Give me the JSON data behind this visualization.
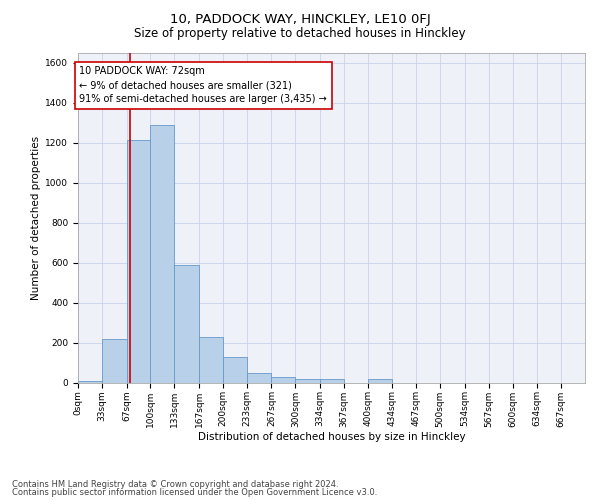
{
  "title": "10, PADDOCK WAY, HINCKLEY, LE10 0FJ",
  "subtitle": "Size of property relative to detached houses in Hinckley",
  "xlabel": "Distribution of detached houses by size in Hinckley",
  "ylabel": "Number of detached properties",
  "bin_labels": [
    "0sqm",
    "33sqm",
    "67sqm",
    "100sqm",
    "133sqm",
    "167sqm",
    "200sqm",
    "233sqm",
    "267sqm",
    "300sqm",
    "334sqm",
    "367sqm",
    "400sqm",
    "434sqm",
    "467sqm",
    "500sqm",
    "534sqm",
    "567sqm",
    "600sqm",
    "634sqm",
    "667sqm"
  ],
  "bar_values": [
    10,
    220,
    1215,
    1290,
    590,
    230,
    130,
    48,
    30,
    20,
    20,
    0,
    20,
    0,
    0,
    0,
    0,
    0,
    0,
    0,
    0
  ],
  "bar_color": "#b8d0e8",
  "bar_edge_color": "#6699cc",
  "property_line_x": 72,
  "annotation_title": "10 PADDOCK WAY: 72sqm",
  "annotation_line1": "← 9% of detached houses are smaller (321)",
  "annotation_line2": "91% of semi-detached houses are larger (3,435) →",
  "vline_color": "#cc0000",
  "box_edge_color": "#cc0000",
  "ylim": [
    0,
    1650
  ],
  "yticks": [
    0,
    200,
    400,
    600,
    800,
    1000,
    1200,
    1400,
    1600
  ],
  "grid_color": "#c8d4e8",
  "background_color": "#eef2f8",
  "footer_line1": "Contains HM Land Registry data © Crown copyright and database right 2024.",
  "footer_line2": "Contains public sector information licensed under the Open Government Licence v3.0.",
  "title_fontsize": 9.5,
  "subtitle_fontsize": 8.5,
  "axis_label_fontsize": 7.5,
  "tick_fontsize": 6.5,
  "annotation_fontsize": 7,
  "footer_fontsize": 6,
  "bin_edges": [
    0,
    33,
    67,
    100,
    133,
    167,
    200,
    233,
    267,
    300,
    334,
    367,
    400,
    434,
    467,
    500,
    534,
    567,
    600,
    634,
    667,
    700
  ]
}
